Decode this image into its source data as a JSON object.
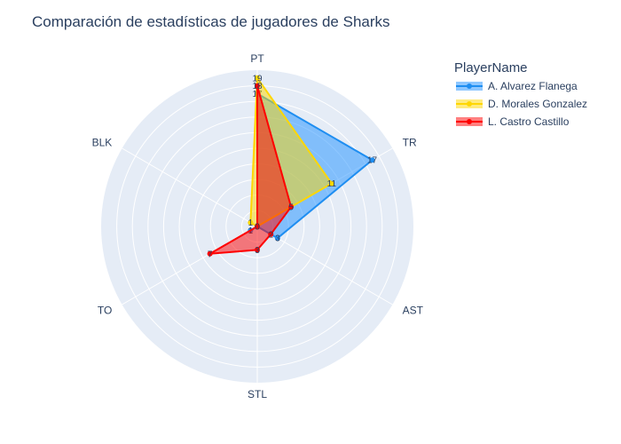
{
  "chart_data": {
    "type": "radar",
    "title": "Comparación de estadísticas de jugadores de Sharks",
    "axes": [
      "PT",
      "TR",
      "AST",
      "STL",
      "TO",
      "BLK"
    ],
    "legend": {
      "title": "PlayerName",
      "placement": "top-right"
    },
    "radial_range": [
      0,
      20
    ],
    "grid": true,
    "series": [
      {
        "name": "A. Alvarez Flanega",
        "values": [
          17,
          17,
          3,
          0,
          1,
          0
        ],
        "color": "#1f8ef1",
        "fill": "rgba(30,144,255,0.5)"
      },
      {
        "name": "D. Morales Gonzalez",
        "values": [
          19,
          11,
          0,
          0,
          0,
          1
        ],
        "color": "#ffd700",
        "fill": "rgba(255,215,0,0.5)"
      },
      {
        "name": "L. Castro Castillo",
        "values": [
          18,
          5,
          2,
          3,
          7,
          0
        ],
        "color": "#ff0000",
        "fill": "rgba(255,0,0,0.5)"
      }
    ]
  }
}
